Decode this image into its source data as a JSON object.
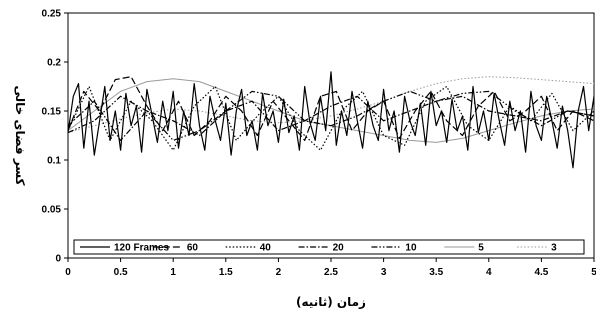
{
  "chart_data": {
    "type": "line",
    "title": "",
    "xlabel": "زمان (ثانیه)",
    "ylabel": "کسر فضای خالی",
    "xlim": [
      0,
      5
    ],
    "ylim": [
      0,
      0.25
    ],
    "x_ticks": [
      "0",
      "0.5",
      "1",
      "1.5",
      "2",
      "2.5",
      "3",
      "3.5",
      "4",
      "4.5",
      "5"
    ],
    "y_ticks": [
      "0",
      "0.05",
      "0.1",
      "0.15",
      "0.2",
      "0.25"
    ],
    "grid": false,
    "legend_position": "bottom-inside",
    "series": [
      {
        "name": "120 Frames",
        "style": "solid",
        "color": "#000000",
        "x": [
          0.0,
          0.05,
          0.1,
          0.15,
          0.2,
          0.25,
          0.3,
          0.35,
          0.4,
          0.45,
          0.5,
          0.55,
          0.6,
          0.65,
          0.7,
          0.75,
          0.8,
          0.85,
          0.9,
          0.95,
          1.0,
          1.05,
          1.1,
          1.15,
          1.2,
          1.25,
          1.3,
          1.35,
          1.4,
          1.45,
          1.5,
          1.55,
          1.6,
          1.65,
          1.7,
          1.75,
          1.8,
          1.85,
          1.9,
          1.95,
          2.0,
          2.05,
          2.1,
          2.15,
          2.2,
          2.25,
          2.3,
          2.35,
          2.4,
          2.45,
          2.5,
          2.55,
          2.6,
          2.65,
          2.7,
          2.75,
          2.8,
          2.85,
          2.9,
          2.95,
          3.0,
          3.05,
          3.1,
          3.15,
          3.2,
          3.25,
          3.3,
          3.35,
          3.4,
          3.45,
          3.5,
          3.55,
          3.6,
          3.65,
          3.7,
          3.75,
          3.8,
          3.85,
          3.9,
          3.95,
          4.0,
          4.05,
          4.1,
          4.15,
          4.2,
          4.25,
          4.3,
          4.35,
          4.4,
          4.45,
          4.5,
          4.55,
          4.6,
          4.65,
          4.7,
          4.75,
          4.8,
          4.85,
          4.9,
          4.95,
          5.0
        ],
        "values": [
          0.128,
          0.165,
          0.178,
          0.112,
          0.16,
          0.105,
          0.14,
          0.175,
          0.12,
          0.15,
          0.11,
          0.168,
          0.135,
          0.155,
          0.108,
          0.172,
          0.145,
          0.118,
          0.16,
          0.13,
          0.17,
          0.112,
          0.15,
          0.125,
          0.178,
          0.135,
          0.11,
          0.165,
          0.14,
          0.12,
          0.158,
          0.105,
          0.15,
          0.172,
          0.125,
          0.14,
          0.11,
          0.168,
          0.135,
          0.15,
          0.118,
          0.162,
          0.128,
          0.145,
          0.11,
          0.175,
          0.138,
          0.12,
          0.165,
          0.13,
          0.19,
          0.115,
          0.15,
          0.125,
          0.17,
          0.14,
          0.112,
          0.16,
          0.135,
          0.12,
          0.172,
          0.13,
          0.15,
          0.108,
          0.165,
          0.14,
          0.125,
          0.158,
          0.115,
          0.17,
          0.135,
          0.15,
          0.118,
          0.162,
          0.13,
          0.145,
          0.11,
          0.175,
          0.128,
          0.15,
          0.12,
          0.168,
          0.14,
          0.115,
          0.16,
          0.13,
          0.15,
          0.108,
          0.17,
          0.135,
          0.12,
          0.165,
          0.14,
          0.112,
          0.155,
          0.13,
          0.092,
          0.15,
          0.175,
          0.13,
          0.165
        ]
      },
      {
        "name": "60",
        "style": "dash",
        "color": "#000000",
        "x": [
          0.0,
          0.15,
          0.3,
          0.45,
          0.6,
          0.75,
          0.9,
          1.05,
          1.2,
          1.35,
          1.5,
          1.65,
          1.8,
          1.95,
          2.1,
          2.25,
          2.4,
          2.55,
          2.7,
          2.85,
          3.0,
          3.15,
          3.3,
          3.45,
          3.6,
          3.75,
          3.9,
          4.05,
          4.2,
          4.35,
          4.5,
          4.65,
          4.8,
          5.0
        ],
        "values": [
          0.13,
          0.17,
          0.15,
          0.182,
          0.185,
          0.155,
          0.13,
          0.16,
          0.125,
          0.14,
          0.165,
          0.15,
          0.125,
          0.16,
          0.14,
          0.12,
          0.165,
          0.17,
          0.13,
          0.15,
          0.16,
          0.122,
          0.15,
          0.17,
          0.14,
          0.125,
          0.155,
          0.17,
          0.14,
          0.15,
          0.165,
          0.13,
          0.15,
          0.14
        ]
      },
      {
        "name": "40",
        "style": "dot",
        "color": "#000000",
        "x": [
          0.0,
          0.2,
          0.4,
          0.6,
          0.8,
          1.0,
          1.2,
          1.4,
          1.6,
          1.8,
          2.0,
          2.2,
          2.4,
          2.6,
          2.8,
          3.0,
          3.2,
          3.4,
          3.6,
          3.8,
          4.0,
          4.2,
          4.4,
          4.6,
          4.8,
          5.0
        ],
        "values": [
          0.13,
          0.175,
          0.12,
          0.16,
          0.14,
          0.11,
          0.155,
          0.175,
          0.12,
          0.145,
          0.165,
          0.13,
          0.11,
          0.15,
          0.17,
          0.125,
          0.115,
          0.16,
          0.175,
          0.135,
          0.12,
          0.155,
          0.14,
          0.168,
          0.13,
          0.15
        ]
      },
      {
        "name": "20",
        "style": "dashdot",
        "color": "#000000",
        "x": [
          0.0,
          0.25,
          0.5,
          0.75,
          1.0,
          1.25,
          1.5,
          1.75,
          2.0,
          2.25,
          2.5,
          2.75,
          3.0,
          3.25,
          3.5,
          3.75,
          4.0,
          4.25,
          4.5,
          4.75,
          5.0
        ],
        "values": [
          0.135,
          0.16,
          0.12,
          0.15,
          0.14,
          0.125,
          0.15,
          0.16,
          0.13,
          0.14,
          0.155,
          0.165,
          0.14,
          0.15,
          0.16,
          0.165,
          0.15,
          0.145,
          0.14,
          0.15,
          0.145
        ]
      },
      {
        "name": "10",
        "style": "dashdotdot",
        "color": "#000000",
        "x": [
          0.0,
          0.25,
          0.5,
          0.75,
          1.0,
          1.25,
          1.5,
          1.75,
          2.0,
          2.25,
          2.5,
          2.75,
          3.0,
          3.25,
          3.5,
          3.75,
          4.0,
          4.25,
          4.5,
          4.75,
          5.0
        ],
        "values": [
          0.128,
          0.14,
          0.165,
          0.15,
          0.12,
          0.13,
          0.15,
          0.17,
          0.165,
          0.14,
          0.135,
          0.145,
          0.16,
          0.17,
          0.16,
          0.168,
          0.17,
          0.15,
          0.135,
          0.15,
          0.145
        ]
      },
      {
        "name": "5",
        "style": "solid-gray",
        "color": "#9a9a9a",
        "x": [
          0.0,
          0.25,
          0.5,
          0.75,
          1.0,
          1.25,
          1.5,
          1.75,
          2.0,
          2.25,
          2.5,
          2.75,
          3.0,
          3.25,
          3.5,
          3.75,
          4.0,
          4.25,
          4.5,
          4.75,
          5.0
        ],
        "values": [
          0.13,
          0.15,
          0.17,
          0.18,
          0.183,
          0.18,
          0.17,
          0.16,
          0.15,
          0.14,
          0.135,
          0.13,
          0.125,
          0.12,
          0.118,
          0.122,
          0.13,
          0.138,
          0.145,
          0.15,
          0.152
        ]
      },
      {
        "name": "3",
        "style": "dot-gray",
        "color": "#9a9a9a",
        "x": [
          0.0,
          0.25,
          0.5,
          0.75,
          1.0,
          1.25,
          1.5,
          1.75,
          2.0,
          2.25,
          2.5,
          2.75,
          3.0,
          3.25,
          3.5,
          3.75,
          4.0,
          4.25,
          4.5,
          4.75,
          5.0
        ],
        "values": [
          0.128,
          0.135,
          0.142,
          0.148,
          0.152,
          0.15,
          0.145,
          0.14,
          0.138,
          0.14,
          0.145,
          0.152,
          0.16,
          0.17,
          0.178,
          0.183,
          0.185,
          0.184,
          0.182,
          0.18,
          0.178
        ]
      }
    ]
  }
}
